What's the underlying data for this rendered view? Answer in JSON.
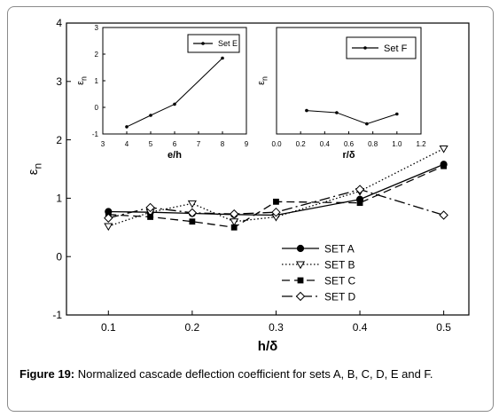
{
  "chart_data": [
    {
      "type": "line",
      "title": "",
      "xlabel": "h/δ",
      "ylabel": "εn",
      "xlim": [
        0.05,
        0.53
      ],
      "ylim": [
        -1,
        4
      ],
      "x_ticks": [
        "0.1",
        "0.2",
        "0.3",
        "0.4",
        "0.5"
      ],
      "x_tick_values": [
        0.1,
        0.2,
        0.3,
        0.4,
        0.5
      ],
      "y_ticks": [
        "-1",
        "0",
        "1",
        "2",
        "3",
        "4"
      ],
      "y_tick_values": [
        -1,
        0,
        1,
        2,
        3,
        4
      ],
      "grid": false,
      "legend_position": "bottom-right",
      "series": [
        {
          "name": "SET A",
          "color": "#000000",
          "dash": "",
          "marker": "circle-filled",
          "x": [
            0.1,
            0.15,
            0.2,
            0.25,
            0.3,
            0.4,
            0.5
          ],
          "y": [
            0.77,
            0.76,
            0.74,
            0.72,
            0.71,
            0.98,
            1.58
          ]
        },
        {
          "name": "SET B",
          "color": "#000000",
          "dash": "1.5,2.5",
          "marker": "triangle-down-open",
          "x": [
            0.1,
            0.15,
            0.2,
            0.25,
            0.3,
            0.4,
            0.5
          ],
          "y": [
            0.52,
            0.76,
            0.91,
            0.6,
            0.68,
            1.12,
            1.85
          ]
        },
        {
          "name": "SET C",
          "color": "#000000",
          "dash": "9,5",
          "marker": "square-filled",
          "x": [
            0.1,
            0.15,
            0.2,
            0.25,
            0.3,
            0.4,
            0.5
          ],
          "y": [
            0.72,
            0.68,
            0.6,
            0.5,
            0.94,
            0.92,
            1.55
          ]
        },
        {
          "name": "SET D",
          "color": "#000000",
          "dash": "12,4,2,4",
          "marker": "diamond-open",
          "x": [
            0.1,
            0.15,
            0.2,
            0.25,
            0.3,
            0.4,
            0.5
          ],
          "y": [
            0.66,
            0.84,
            0.75,
            0.73,
            0.76,
            1.15,
            0.71
          ]
        }
      ]
    },
    {
      "type": "line",
      "title": "",
      "xlabel": "e/h",
      "ylabel": "εn",
      "xlim": [
        3,
        9
      ],
      "ylim": [
        -1,
        3
      ],
      "x_ticks": [
        "3",
        "4",
        "5",
        "6",
        "7",
        "8",
        "9"
      ],
      "x_tick_values": [
        3,
        4,
        5,
        6,
        7,
        8,
        9
      ],
      "y_ticks": [
        "-1",
        "0",
        "1",
        "2",
        "3"
      ],
      "y_tick_values": [
        -1,
        0,
        1,
        2,
        3
      ],
      "grid": false,
      "legend_position": "top-right",
      "series": [
        {
          "name": "Set E",
          "color": "#000000",
          "dash": "",
          "marker": "dot",
          "x": [
            4,
            5,
            6,
            8
          ],
          "y": [
            -0.73,
            -0.3,
            0.12,
            1.85
          ]
        }
      ]
    },
    {
      "type": "line",
      "title": "",
      "xlabel": "r/δ",
      "ylabel": "εn",
      "xlim": [
        0.0,
        1.2
      ],
      "ylim": [
        -1,
        3
      ],
      "x_ticks": [
        "0.0",
        "0.2",
        "0.4",
        "0.6",
        "0.8",
        "1.0",
        "1.2"
      ],
      "x_tick_values": [
        0.0,
        0.2,
        0.4,
        0.6,
        0.8,
        1.0,
        1.2
      ],
      "y_ticks": [],
      "y_tick_values": [],
      "grid": false,
      "legend_position": "top-right",
      "series": [
        {
          "name": "Set F",
          "color": "#000000",
          "dash": "",
          "marker": "dot",
          "x": [
            0.25,
            0.5,
            0.75,
            1.0
          ],
          "y": [
            -0.12,
            -0.2,
            -0.62,
            -0.25
          ]
        }
      ]
    }
  ],
  "caption": {
    "label": "Figure 19:",
    "text": " Normalized cascade deflection coefficient for sets A, B, C, D, E and F."
  }
}
